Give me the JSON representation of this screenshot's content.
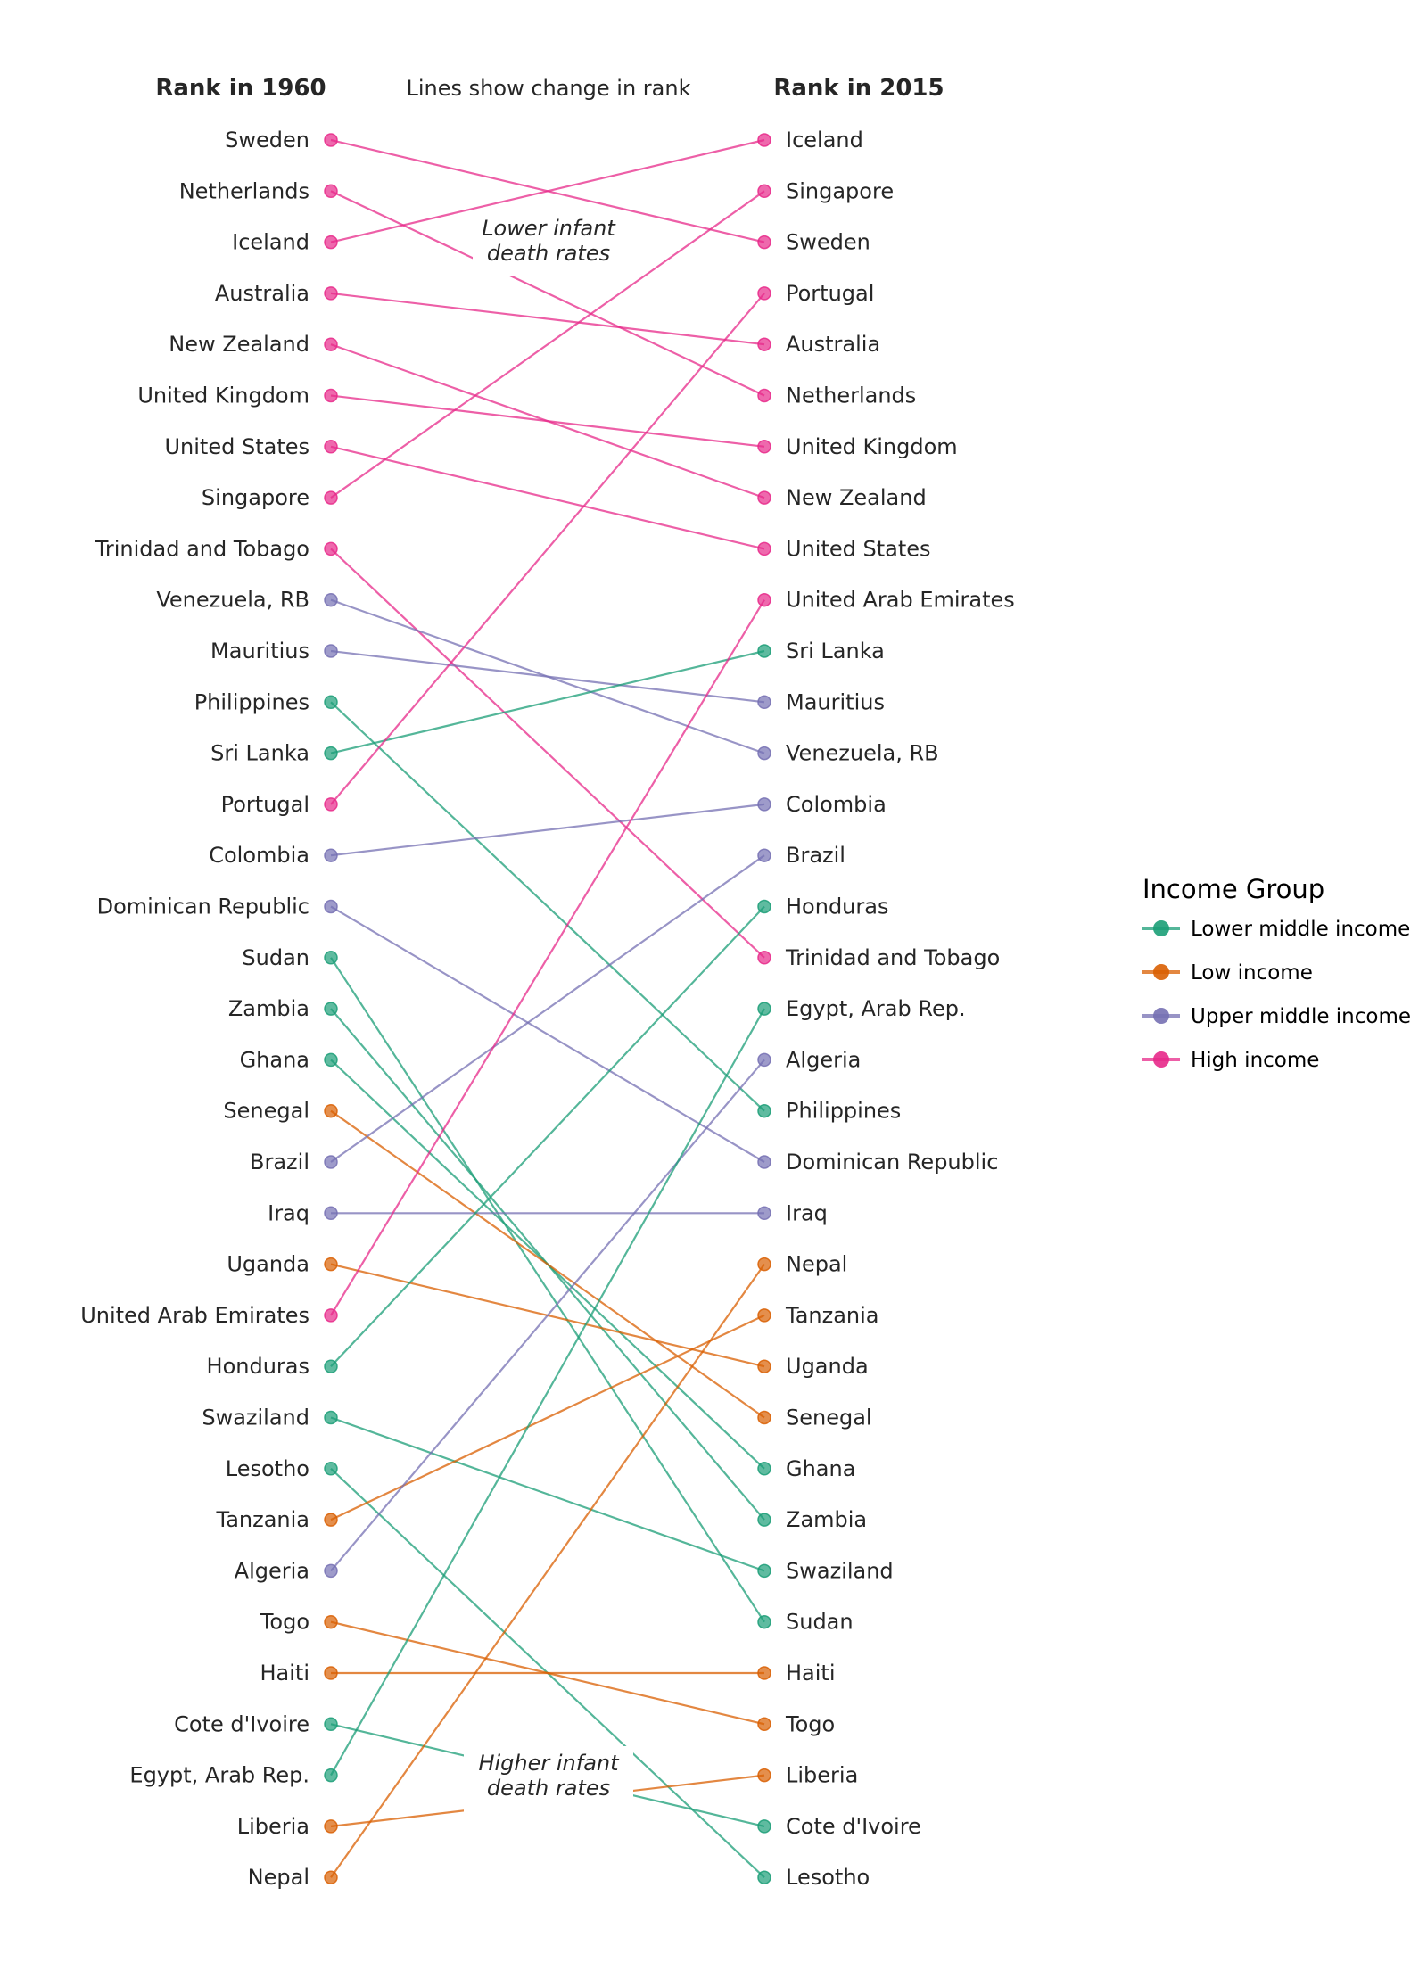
{
  "chart_data": {
    "type": "slope",
    "title": "Lines show change in rank",
    "left_header": "Rank in 1960",
    "right_header": "Rank in 2015",
    "annotations": {
      "top": [
        "Lower infant",
        "death rates"
      ],
      "bottom": [
        "Higher infant",
        "death rates"
      ]
    },
    "legend": {
      "title": "Income Group",
      "placement": "right",
      "entries": [
        {
          "name": "Lower middle income",
          "key": "lmi"
        },
        {
          "name": "Low income",
          "key": "li"
        },
        {
          "name": "Upper middle income",
          "key": "umi"
        },
        {
          "name": "High income",
          "key": "hi"
        }
      ]
    },
    "colors": {
      "lmi": "#1b9e77",
      "li": "#d95f02",
      "umi": "#7570b3",
      "hi": "#e7298a"
    },
    "countries": [
      {
        "name": "Sweden",
        "group": "hi",
        "rank_1960": 1,
        "rank_2015": 3
      },
      {
        "name": "Netherlands",
        "group": "hi",
        "rank_1960": 2,
        "rank_2015": 6
      },
      {
        "name": "Iceland",
        "group": "hi",
        "rank_1960": 3,
        "rank_2015": 1
      },
      {
        "name": "Australia",
        "group": "hi",
        "rank_1960": 4,
        "rank_2015": 5
      },
      {
        "name": "New Zealand",
        "group": "hi",
        "rank_1960": 5,
        "rank_2015": 8
      },
      {
        "name": "United Kingdom",
        "group": "hi",
        "rank_1960": 6,
        "rank_2015": 7
      },
      {
        "name": "United States",
        "group": "hi",
        "rank_1960": 7,
        "rank_2015": 9
      },
      {
        "name": "Singapore",
        "group": "hi",
        "rank_1960": 8,
        "rank_2015": 2
      },
      {
        "name": "Trinidad and Tobago",
        "group": "hi",
        "rank_1960": 9,
        "rank_2015": 17
      },
      {
        "name": "Venezuela, RB",
        "group": "umi",
        "rank_1960": 10,
        "rank_2015": 13
      },
      {
        "name": "Mauritius",
        "group": "umi",
        "rank_1960": 11,
        "rank_2015": 12
      },
      {
        "name": "Philippines",
        "group": "lmi",
        "rank_1960": 12,
        "rank_2015": 20
      },
      {
        "name": "Sri Lanka",
        "group": "lmi",
        "rank_1960": 13,
        "rank_2015": 11
      },
      {
        "name": "Portugal",
        "group": "hi",
        "rank_1960": 14,
        "rank_2015": 4
      },
      {
        "name": "Colombia",
        "group": "umi",
        "rank_1960": 15,
        "rank_2015": 14
      },
      {
        "name": "Dominican Republic",
        "group": "umi",
        "rank_1960": 16,
        "rank_2015": 21
      },
      {
        "name": "Sudan",
        "group": "lmi",
        "rank_1960": 17,
        "rank_2015": 30
      },
      {
        "name": "Zambia",
        "group": "lmi",
        "rank_1960": 18,
        "rank_2015": 28
      },
      {
        "name": "Ghana",
        "group": "lmi",
        "rank_1960": 19,
        "rank_2015": 27
      },
      {
        "name": "Senegal",
        "group": "li",
        "rank_1960": 20,
        "rank_2015": 26
      },
      {
        "name": "Brazil",
        "group": "umi",
        "rank_1960": 21,
        "rank_2015": 15
      },
      {
        "name": "Iraq",
        "group": "umi",
        "rank_1960": 22,
        "rank_2015": 22
      },
      {
        "name": "Uganda",
        "group": "li",
        "rank_1960": 23,
        "rank_2015": 25
      },
      {
        "name": "United Arab Emirates",
        "group": "hi",
        "rank_1960": 24,
        "rank_2015": 10
      },
      {
        "name": "Honduras",
        "group": "lmi",
        "rank_1960": 25,
        "rank_2015": 16
      },
      {
        "name": "Swaziland",
        "group": "lmi",
        "rank_1960": 26,
        "rank_2015": 29
      },
      {
        "name": "Lesotho",
        "group": "lmi",
        "rank_1960": 27,
        "rank_2015": 35
      },
      {
        "name": "Tanzania",
        "group": "li",
        "rank_1960": 28,
        "rank_2015": 24
      },
      {
        "name": "Algeria",
        "group": "umi",
        "rank_1960": 29,
        "rank_2015": 19
      },
      {
        "name": "Togo",
        "group": "li",
        "rank_1960": 30,
        "rank_2015": 32
      },
      {
        "name": "Haiti",
        "group": "li",
        "rank_1960": 31,
        "rank_2015": 31
      },
      {
        "name": "Cote d'Ivoire",
        "group": "lmi",
        "rank_1960": 32,
        "rank_2015": 34
      },
      {
        "name": "Egypt, Arab Rep.",
        "group": "lmi",
        "rank_1960": 33,
        "rank_2015": 18
      },
      {
        "name": "Liberia",
        "group": "li",
        "rank_1960": 34,
        "rank_2015": 33
      },
      {
        "name": "Nepal",
        "group": "li",
        "rank_1960": 35,
        "rank_2015": 23
      }
    ]
  }
}
